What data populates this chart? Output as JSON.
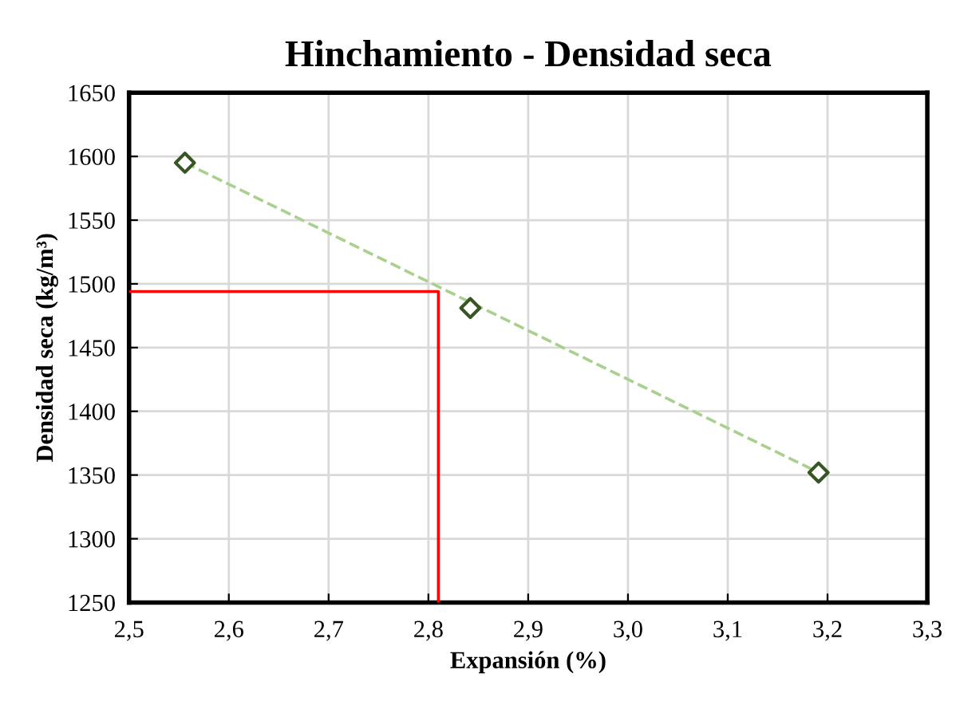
{
  "chart_data": {
    "type": "scatter",
    "title": "Hinchamiento - Densidad seca",
    "xlabel": "Expansión (%)",
    "ylabel": "Densidad seca (kg/m³)",
    "series": [
      {
        "type": "line",
        "x": [
          2.556,
          3.191
        ],
        "values": [
          1595,
          1352
        ],
        "color": "#a9d18e",
        "line_style": "dashed",
        "marker": "none"
      },
      {
        "x": [
          2.556,
          2.842,
          3.191
        ],
        "values": [
          1595,
          1481,
          1352
        ],
        "color": "#375623",
        "marker": "diamond"
      },
      {
        "type": "line",
        "x": [
          2.5,
          2.81,
          2.81
        ],
        "values": [
          1494,
          1494,
          1250
        ],
        "color": "#ff0000",
        "line_style": "solid",
        "marker": "none"
      }
    ],
    "xlim": [
      2.5,
      3.3
    ],
    "ylim": [
      1250,
      1650
    ],
    "xticks": [
      {
        "value": 2.5,
        "label": "2,5"
      },
      {
        "value": 2.6,
        "label": "2,6"
      },
      {
        "value": 2.7,
        "label": "2,7"
      },
      {
        "value": 2.8,
        "label": "2,8"
      },
      {
        "value": 2.9,
        "label": "2,9"
      },
      {
        "value": 3.0,
        "label": "3,0"
      },
      {
        "value": 3.1,
        "label": "3,1"
      },
      {
        "value": 3.2,
        "label": "3,2"
      },
      {
        "value": 3.3,
        "label": "3,3"
      }
    ],
    "yticks": [
      1250,
      1300,
      1350,
      1400,
      1450,
      1500,
      1550,
      1600,
      1650
    ],
    "grid": true,
    "legend": false
  }
}
